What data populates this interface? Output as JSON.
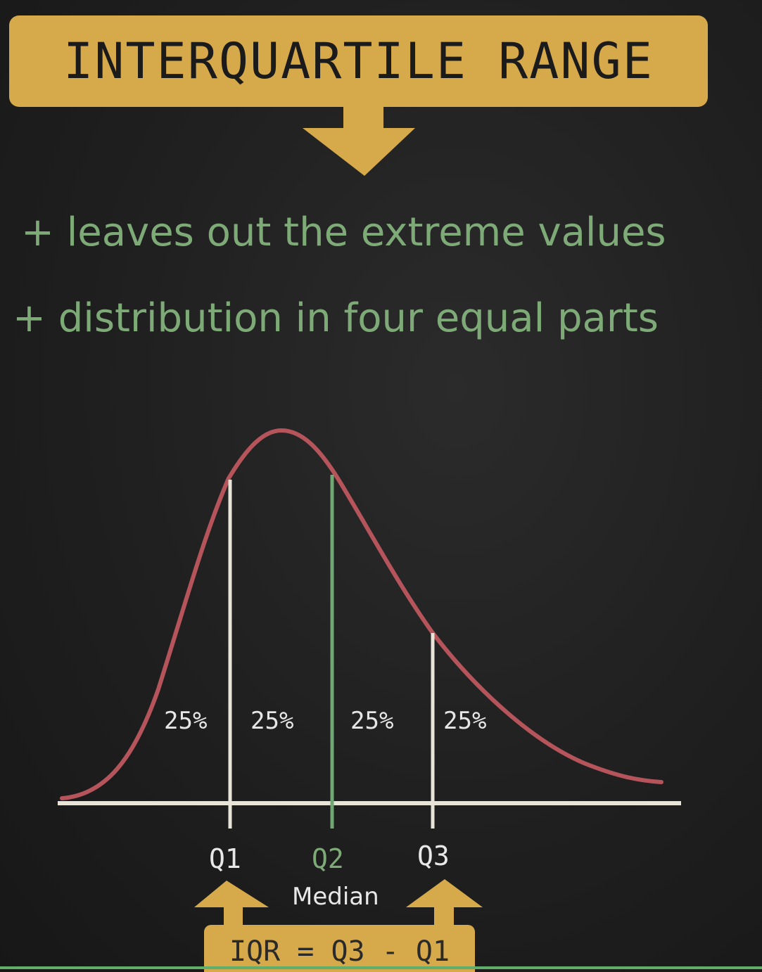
{
  "title": "INTERQUARTILE RANGE",
  "bullets": [
    "+ leaves out the extreme values",
    "+ distribution in four equal parts"
  ],
  "quartile_shares": [
    "25%",
    "25%",
    "25%",
    "25%"
  ],
  "quartile_labels": {
    "q1": "Q1",
    "q2": "Q2",
    "q3": "Q3"
  },
  "median_label": "Median",
  "formula": "IQR = Q3 - Q1",
  "colors": {
    "accent": "#d6a94a",
    "bullet_text": "#7daa77",
    "curve": "#b5545a",
    "axis": "#e8e4d8",
    "median_line": "#6fa872"
  },
  "icons": [
    "down-arrow-icon",
    "up-arrow-icon"
  ]
}
